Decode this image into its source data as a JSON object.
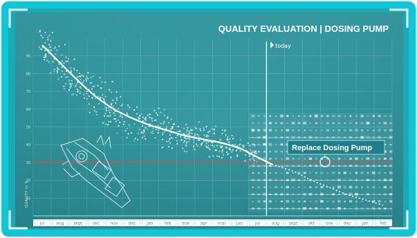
{
  "chart_data": {
    "type": "scatter",
    "title": "QUALITY EVALUATION | DOSING PUMP",
    "ylabel": "QUALITY  in %",
    "ylim": [
      0,
      100
    ],
    "yticks": [
      10,
      20,
      30,
      40,
      50,
      60,
      70,
      80,
      90
    ],
    "grid": true,
    "categories": [
      "jul",
      "aug",
      "sept",
      "okt",
      "nov",
      "dez",
      "jan",
      "feb",
      "mar",
      "apr",
      "mai",
      "jun",
      "jul",
      "aug",
      "sept",
      "okt",
      "nov",
      "dez",
      "jan",
      "feb"
    ],
    "today_label": "today",
    "today_index": 13,
    "threshold": 30,
    "trend": {
      "x": [
        0.5,
        1.5,
        2.5,
        3.5,
        4.5,
        5.5,
        6.5,
        7.5,
        8.5,
        9.5,
        10.5,
        11.5,
        12.5,
        13.3
      ],
      "y": [
        96,
        86,
        76,
        67,
        60,
        55,
        51,
        48,
        45,
        43,
        41,
        38,
        33,
        29
      ]
    },
    "forecast": {
      "x": [
        13.3,
        14.5,
        15.5,
        16.5,
        17.5,
        18.5,
        19.5
      ],
      "y": [
        29,
        25,
        20,
        16,
        12,
        9,
        6
      ]
    },
    "scatter_range": {
      "x_start": 0.3,
      "x_end": 12.5
    },
    "forecast_band": {
      "x_start": 12.0,
      "x_end": 20
    },
    "callout": "Replace Dosing Pump",
    "colors": {
      "background": "#2f8f97",
      "plot": "#3a9aa1",
      "grid": "#8fcfd3",
      "threshold": "#d0504e",
      "trend": "#ffffff",
      "frame": "#17e3f0",
      "callout_bg": "#1f7f88"
    }
  }
}
